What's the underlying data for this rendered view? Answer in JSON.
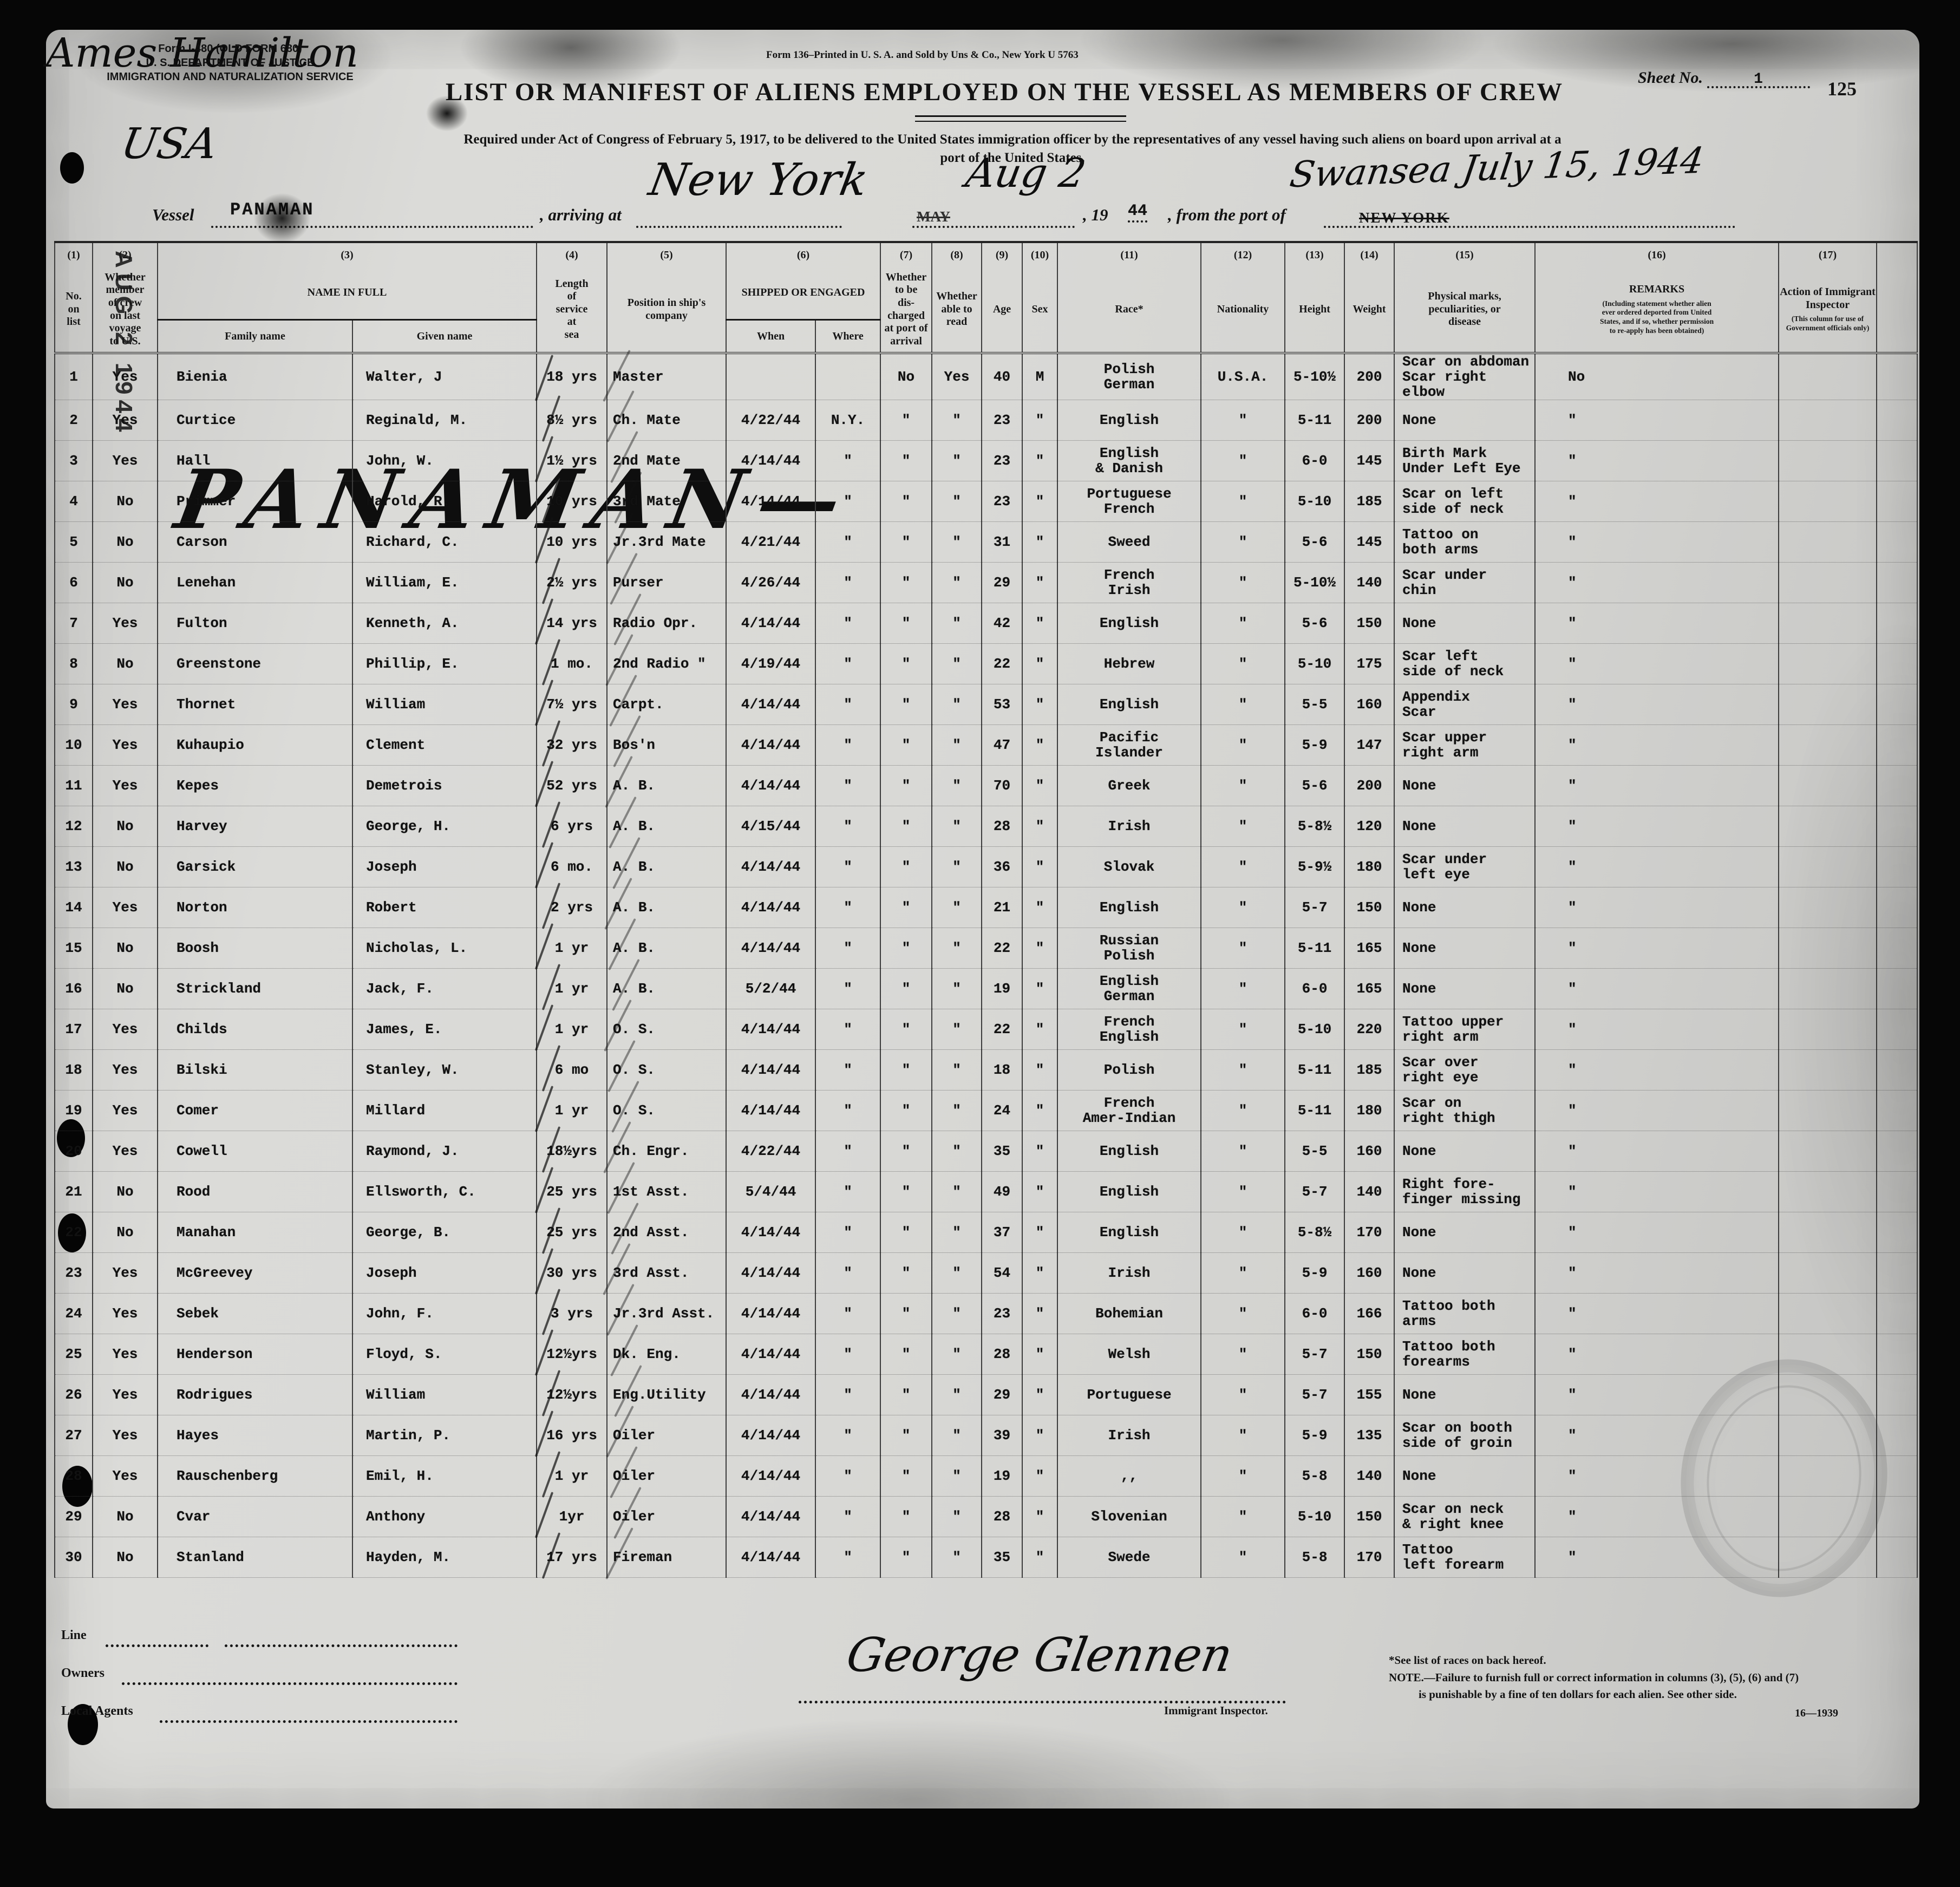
{
  "stamps": {
    "page_number": "125",
    "margin_date_stamp": "AUG 2  1944",
    "margin_vessel_hw": "PANAMAN—",
    "sheet_no_label": "Sheet No.",
    "sheet_no_value": "1"
  },
  "form_id": [
    "Form I-480 (OLD FORM 680)",
    "U. S. DEPARTMENT OF JUSTICE",
    "IMMIGRATION AND NATURALIZATION SERVICE"
  ],
  "printer_note": "Form 136–Printed in U. S. A. and Sold by Uns & Co., New York   U 5763",
  "title": "LIST OR MANIFEST OF ALIENS EMPLOYED ON THE VESSEL AS MEMBERS OF CREW",
  "subtitle_line1": "Required under Act of Congress of February 5, 1917, to be delivered to the United States immigration officer by the representatives of any vessel having such aliens on board upon arrival at a",
  "subtitle_line2": "port of the United States.",
  "vessel_line": {
    "country_hw": "USA",
    "vessel_label": "Vessel",
    "vessel_name": "PANAMAN",
    "arriving_label": ", arriving at",
    "arriving_port_hw": "New York",
    "struck_month": "MAY",
    "arrival_date_hw": "Aug 2",
    "year_label": ", 19",
    "year_value": "44",
    "from_port_label": ", from the port of",
    "struck_port": "NEW YORK",
    "from_port_hw": "Swansea  July 15, 1944"
  },
  "table": {
    "col_numbers": [
      "(1)",
      "(2)",
      "(3)",
      "(4)",
      "(5)",
      "(6)",
      "(7)",
      "(8)",
      "(9)",
      "(10)",
      "(11)",
      "(12)",
      "(13)",
      "(14)",
      "(15)",
      "(16)",
      "(17)"
    ],
    "headers": {
      "no": "No.\non\nlist",
      "member": "Whether\nmember\nof crew\non last\nvoyage\nto U.S.",
      "name_group": "NAME IN FULL",
      "family": "Family name",
      "given": "Given name",
      "service": "Length\nof\nservice\nat\nsea",
      "position": "Position in ship's\ncompany",
      "shipped_group": "SHIPPED OR ENGAGED",
      "when": "When",
      "where": "Where",
      "discharged": "Whether\nto be\ndis-\ncharged\nat port of\narrival",
      "read": "Whether\nable to\nread",
      "age": "Age",
      "sex": "Sex",
      "race": "Race*",
      "nationality": "Nationality",
      "height": "Height",
      "weight": "Weight",
      "marks": "Physical marks,\npeculiarities, or\ndisease",
      "remarks": "REMARKS",
      "remarks_sub": "(Including statement whether alien\never ordered deported from United\nStates, and if so, whether permission\nto re-apply has been obtained)",
      "action": "Action of Immigrant\nInspector",
      "action_sub": "(This column for use of\nGovernment officials only)"
    }
  },
  "crew_rows": [
    {
      "no": "1",
      "member": "Yes",
      "family": "Bienia",
      "given": "Walter, J",
      "service": "18 yrs",
      "position": "Master",
      "when": "",
      "where": "",
      "disch": "No",
      "read": "Yes",
      "age": "40",
      "sex": "M",
      "race": "Polish\nGerman",
      "nat": "U.S.A.",
      "height": "5-10½",
      "weight": "200",
      "marks": "Scar on abdoman\nScar right elbow",
      "remarks": "No"
    },
    {
      "no": "2",
      "member": "Yes",
      "family": "Curtice",
      "given": "Reginald, M.",
      "service": "8½ yrs",
      "position": "Ch. Mate",
      "when": "4/22/44",
      "where": "N.Y.",
      "disch": "\"",
      "read": "\"",
      "age": "23",
      "sex": "\"",
      "race": "English",
      "nat": "\"",
      "height": "5-11",
      "weight": "200",
      "marks": "None",
      "remarks": "\""
    },
    {
      "no": "3",
      "member": "Yes",
      "family": "Hall",
      "given": "John, W.",
      "service": "1½ yrs",
      "position": "2nd Mate",
      "when": "4/14/44",
      "where": "\"",
      "disch": "\"",
      "read": "\"",
      "age": "23",
      "sex": "\"",
      "race": "English\n& Danish",
      "nat": "\"",
      "height": "6-0",
      "weight": "145",
      "marks": "Birth Mark\nUnder Left Eye",
      "remarks": "\""
    },
    {
      "no": "4",
      "member": "No",
      "family": "Primmer",
      "given": "Harold, R.",
      "service": "10 yrs",
      "position": "3rd Mate",
      "when": "4/14/44",
      "where": "\"",
      "disch": "\"",
      "read": "\"",
      "age": "23",
      "sex": "\"",
      "race": "Portuguese\nFrench",
      "nat": "\"",
      "height": "5-10",
      "weight": "185",
      "marks": "Scar on left\nside of neck",
      "remarks": "\""
    },
    {
      "no": "5",
      "member": "No",
      "family": "Carson",
      "given": "Richard, C.",
      "service": "10 yrs",
      "position": "Jr.3rd Mate",
      "when": "4/21/44",
      "where": "\"",
      "disch": "\"",
      "read": "\"",
      "age": "31",
      "sex": "\"",
      "race": "Sweed",
      "nat": "\"",
      "height": "5-6",
      "weight": "145",
      "marks": "Tattoo on\nboth arms",
      "remarks": "\""
    },
    {
      "no": "6",
      "member": "No",
      "family": "Lenehan",
      "given": "William, E.",
      "service": "2½ yrs",
      "position": "Purser",
      "when": "4/26/44",
      "where": "\"",
      "disch": "\"",
      "read": "\"",
      "age": "29",
      "sex": "\"",
      "race": "French\nIrish",
      "nat": "\"",
      "height": "5-10½",
      "weight": "140",
      "marks": "Scar under\nchin",
      "remarks": "\""
    },
    {
      "no": "7",
      "member": "Yes",
      "family": "Fulton",
      "given": "Kenneth, A.",
      "service": "14 yrs",
      "position": "Radio Opr.",
      "when": "4/14/44",
      "where": "\"",
      "disch": "\"",
      "read": "\"",
      "age": "42",
      "sex": "\"",
      "race": "English",
      "nat": "\"",
      "height": "5-6",
      "weight": "150",
      "marks": "None",
      "remarks": "\""
    },
    {
      "no": "8",
      "member": "No",
      "family": "Greenstone",
      "given": "Phillip, E.",
      "service": "1 mo.",
      "position": "2nd Radio \"",
      "when": "4/19/44",
      "where": "\"",
      "disch": "\"",
      "read": "\"",
      "age": "22",
      "sex": "\"",
      "race": "Hebrew",
      "nat": "\"",
      "height": "5-10",
      "weight": "175",
      "marks": "Scar left\nside of neck",
      "remarks": "\""
    },
    {
      "no": "9",
      "member": "Yes",
      "family": "Thornet",
      "given": "William",
      "service": "7½ yrs",
      "position": "Carpt.",
      "when": "4/14/44",
      "where": "\"",
      "disch": "\"",
      "read": "\"",
      "age": "53",
      "sex": "\"",
      "race": "English",
      "nat": "\"",
      "height": "5-5",
      "weight": "160",
      "marks": "Appendix\nScar",
      "remarks": "\""
    },
    {
      "no": "10",
      "member": "Yes",
      "family": "Kuhaupio",
      "given": "Clement",
      "service": "32 yrs",
      "position": "Bos'n",
      "when": "4/14/44",
      "where": "\"",
      "disch": "\"",
      "read": "\"",
      "age": "47",
      "sex": "\"",
      "race": "Pacific\nIslander",
      "nat": "\"",
      "height": "5-9",
      "weight": "147",
      "marks": "Scar upper\nright arm",
      "remarks": "\""
    },
    {
      "no": "11",
      "member": "Yes",
      "family": "Kepes",
      "given": "Demetrois",
      "service": "52 yrs",
      "position": "A. B.",
      "when": "4/14/44",
      "where": "\"",
      "disch": "\"",
      "read": "\"",
      "age": "70",
      "sex": "\"",
      "race": "Greek",
      "nat": "\"",
      "height": "5-6",
      "weight": "200",
      "marks": "None",
      "remarks": "\""
    },
    {
      "no": "12",
      "member": "No",
      "family": "Harvey",
      "given": "George, H.",
      "service": "6 yrs",
      "position": "A. B.",
      "when": "4/15/44",
      "where": "\"",
      "disch": "\"",
      "read": "\"",
      "age": "28",
      "sex": "\"",
      "race": "Irish",
      "nat": "\"",
      "height": "5-8½",
      "weight": "120",
      "marks": "None",
      "remarks": "\""
    },
    {
      "no": "13",
      "member": "No",
      "family": "Garsick",
      "given": "Joseph",
      "service": "6 mo.",
      "position": "A. B.",
      "when": "4/14/44",
      "where": "\"",
      "disch": "\"",
      "read": "\"",
      "age": "36",
      "sex": "\"",
      "race": "Slovak",
      "nat": "\"",
      "height": "5-9½",
      "weight": "180",
      "marks": "Scar under\nleft eye",
      "remarks": "\""
    },
    {
      "no": "14",
      "member": "Yes",
      "family": "Norton",
      "given": "Robert",
      "service": "2 yrs",
      "position": "A. B.",
      "when": "4/14/44",
      "where": "\"",
      "disch": "\"",
      "read": "\"",
      "age": "21",
      "sex": "\"",
      "race": "English",
      "nat": "\"",
      "height": "5-7",
      "weight": "150",
      "marks": "None",
      "remarks": "\""
    },
    {
      "no": "15",
      "member": "No",
      "family": "Boosh",
      "given": "Nicholas, L.",
      "service": "1 yr",
      "position": "A. B.",
      "when": "4/14/44",
      "where": "\"",
      "disch": "\"",
      "read": "\"",
      "age": "22",
      "sex": "\"",
      "race": "Russian\nPolish",
      "nat": "\"",
      "height": "5-11",
      "weight": "165",
      "marks": "None",
      "remarks": "\""
    },
    {
      "no": "16",
      "member": "No",
      "family": "Strickland",
      "given": "Jack, F.",
      "service": "1 yr",
      "position": "A. B.",
      "when": "5/2/44",
      "where": "\"",
      "disch": "\"",
      "read": "\"",
      "age": "19",
      "sex": "\"",
      "race": "English\nGerman",
      "nat": "\"",
      "height": "6-0",
      "weight": "165",
      "marks": "None",
      "remarks": "\""
    },
    {
      "no": "17",
      "member": "Yes",
      "family": "Childs",
      "given": "James, E.",
      "service": "1 yr",
      "position": "O. S.",
      "when": "4/14/44",
      "where": "\"",
      "disch": "\"",
      "read": "\"",
      "age": "22",
      "sex": "\"",
      "race": "French\nEnglish",
      "nat": "\"",
      "height": "5-10",
      "weight": "220",
      "marks": "Tattoo upper\nright arm",
      "remarks": "\""
    },
    {
      "no": "18",
      "member": "Yes",
      "family": "Bilski",
      "given": "Stanley, W.",
      "service": "6 mo",
      "position": "O. S.",
      "when": "4/14/44",
      "where": "\"",
      "disch": "\"",
      "read": "\"",
      "age": "18",
      "sex": "\"",
      "race": "Polish",
      "nat": "\"",
      "height": "5-11",
      "weight": "185",
      "marks": "Scar over\nright eye",
      "remarks": "\""
    },
    {
      "no": "19",
      "member": "Yes",
      "family": "Comer",
      "given": "Millard",
      "service": "1 yr",
      "position": "O. S.",
      "when": "4/14/44",
      "where": "\"",
      "disch": "\"",
      "read": "\"",
      "age": "24",
      "sex": "\"",
      "race": "French\nAmer-Indian",
      "nat": "\"",
      "height": "5-11",
      "weight": "180",
      "marks": "Scar on\nright thigh",
      "remarks": "\""
    },
    {
      "no": "20",
      "member": "Yes",
      "family": "Cowell",
      "given": "Raymond, J.",
      "service": "18½yrs",
      "position": "Ch. Engr.",
      "when": "4/22/44",
      "where": "\"",
      "disch": "\"",
      "read": "\"",
      "age": "35",
      "sex": "\"",
      "race": "English",
      "nat": "\"",
      "height": "5-5",
      "weight": "160",
      "marks": "None",
      "remarks": "\""
    },
    {
      "no": "21",
      "member": "No",
      "family": "Rood",
      "given": "Ellsworth, C.",
      "service": "25 yrs",
      "position": "1st Asst.",
      "when": "5/4/44",
      "where": "\"",
      "disch": "\"",
      "read": "\"",
      "age": "49",
      "sex": "\"",
      "race": "English",
      "nat": "\"",
      "height": "5-7",
      "weight": "140",
      "marks": "Right fore-\nfinger missing",
      "remarks": "\""
    },
    {
      "no": "22",
      "member": "No",
      "family": "Manahan",
      "given": "George, B.",
      "service": "25 yrs",
      "position": "2nd Asst.",
      "when": "4/14/44",
      "where": "\"",
      "disch": "\"",
      "read": "\"",
      "age": "37",
      "sex": "\"",
      "race": "English",
      "nat": "\"",
      "height": "5-8½",
      "weight": "170",
      "marks": "None",
      "remarks": "\""
    },
    {
      "no": "23",
      "member": "Yes",
      "family": "McGreevey",
      "given": "Joseph",
      "service": "30 yrs",
      "position": "3rd Asst.",
      "when": "4/14/44",
      "where": "\"",
      "disch": "\"",
      "read": "\"",
      "age": "54",
      "sex": "\"",
      "race": "Irish",
      "nat": "\"",
      "height": "5-9",
      "weight": "160",
      "marks": "None",
      "remarks": "\""
    },
    {
      "no": "24",
      "member": "Yes",
      "family": "Sebek",
      "given": "John, F.",
      "service": "3 yrs",
      "position": "Jr.3rd Asst.",
      "when": "4/14/44",
      "where": "\"",
      "disch": "\"",
      "read": "\"",
      "age": "23",
      "sex": "\"",
      "race": "Bohemian",
      "nat": "\"",
      "height": "6-0",
      "weight": "166",
      "marks": "Tattoo both\narms",
      "remarks": "\""
    },
    {
      "no": "25",
      "member": "Yes",
      "family": "Henderson",
      "given": "Floyd, S.",
      "service": "12½yrs",
      "position": "Dk. Eng.",
      "when": "4/14/44",
      "where": "\"",
      "disch": "\"",
      "read": "\"",
      "age": "28",
      "sex": "\"",
      "race": "Welsh",
      "nat": "\"",
      "height": "5-7",
      "weight": "150",
      "marks": "Tattoo both\nforearms",
      "remarks": "\""
    },
    {
      "no": "26",
      "member": "Yes",
      "family": "Rodrigues",
      "given": "William",
      "service": "12½yrs",
      "position": "Eng.Utility",
      "when": "4/14/44",
      "where": "\"",
      "disch": "\"",
      "read": "\"",
      "age": "29",
      "sex": "\"",
      "race": "Portuguese",
      "nat": "\"",
      "height": "5-7",
      "weight": "155",
      "marks": "None",
      "remarks": "\""
    },
    {
      "no": "27",
      "member": "Yes",
      "family": "Hayes",
      "given": "Martin, P.",
      "service": "16 yrs",
      "position": "Oiler",
      "when": "4/14/44",
      "where": "\"",
      "disch": "\"",
      "read": "\"",
      "age": "39",
      "sex": "\"",
      "race": "Irish",
      "nat": "\"",
      "height": "5-9",
      "weight": "135",
      "marks": "Scar on booth\nside of groin",
      "remarks": "\""
    },
    {
      "no": "28",
      "member": "Yes",
      "family": "Rauschenberg",
      "given": "Emil, H.",
      "service": "1 yr",
      "position": "Oiler",
      "when": "4/14/44",
      "where": "\"",
      "disch": "\"",
      "read": "\"",
      "age": "19",
      "sex": "\"",
      "race": ",,",
      "nat": "\"",
      "height": "5-8",
      "weight": "140",
      "marks": "None",
      "remarks": "\""
    },
    {
      "no": "29",
      "member": "No",
      "family": "Cvar",
      "given": "Anthony",
      "service": "1yr",
      "position": "Oiler",
      "when": "4/14/44",
      "where": "\"",
      "disch": "\"",
      "read": "\"",
      "age": "28",
      "sex": "\"",
      "race": "Slovenian",
      "nat": "\"",
      "height": "5-10",
      "weight": "150",
      "marks": "Scar on neck\n& right knee",
      "remarks": "\""
    },
    {
      "no": "30",
      "member": "No",
      "family": "Stanland",
      "given": "Hayden, M.",
      "service": "17 yrs",
      "position": "Fireman",
      "when": "4/14/44",
      "where": "\"",
      "disch": "\"",
      "read": "\"",
      "age": "35",
      "sex": "\"",
      "race": "Swede",
      "nat": "\"",
      "height": "5-8",
      "weight": "170",
      "marks": "Tattoo\nleft forearm",
      "remarks": "\""
    }
  ],
  "footer": {
    "line_label": "Line",
    "owners_label": "Owners",
    "local_agents_label": "Local Agents",
    "local_agents_hw": "Ames Hamilton",
    "inspector_sig_hw": "George Glennen",
    "inspector_label": "Immigrant Inspector.",
    "footnote1": "*See list of races on back hereof.",
    "footnote2": "NOTE.—Failure to furnish full or correct information in columns (3), (5), (6) and (7)",
    "footnote3": "is punishable by a fine of ten dollars for each alien.   See other side.",
    "form_number": "16—1939"
  }
}
